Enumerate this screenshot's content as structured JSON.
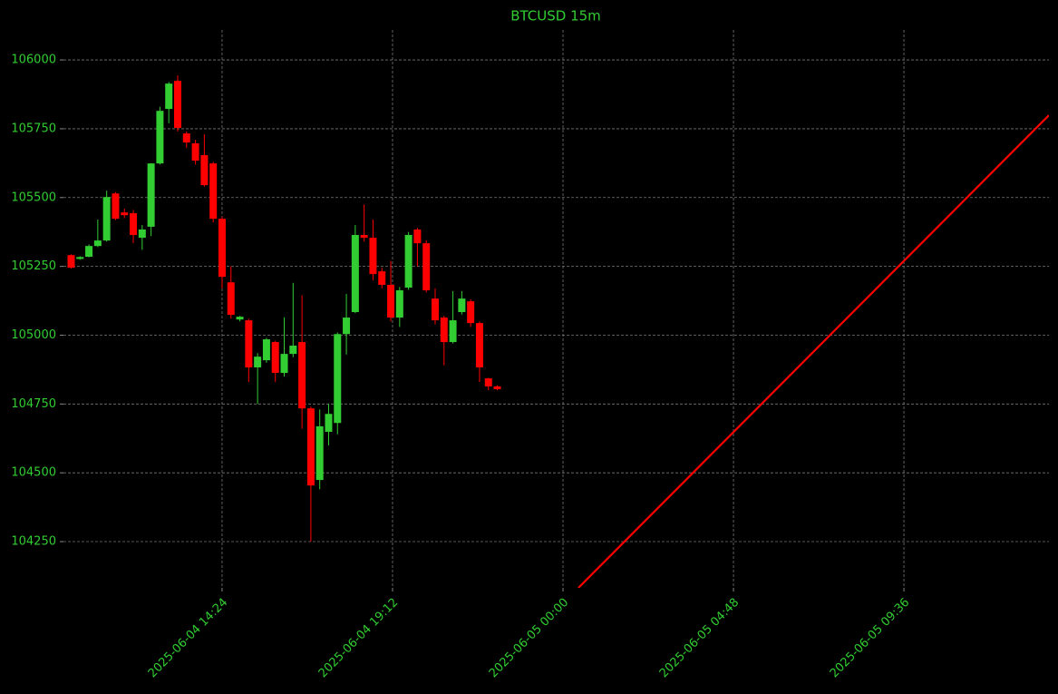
{
  "chart_data": {
    "type": "candlestick",
    "title": "BTCUSD 15m",
    "x": [
      "2025-06-04 10:09",
      "2025-06-04 10:24",
      "2025-06-04 10:39",
      "2025-06-04 10:54",
      "2025-06-04 11:09",
      "2025-06-04 11:24",
      "2025-06-04 11:39",
      "2025-06-04 11:54",
      "2025-06-04 12:09",
      "2025-06-04 12:24",
      "2025-06-04 12:39",
      "2025-06-04 12:54",
      "2025-06-04 13:09",
      "2025-06-04 13:24",
      "2025-06-04 13:39",
      "2025-06-04 13:54",
      "2025-06-04 14:09",
      "2025-06-04 14:24",
      "2025-06-04 14:39",
      "2025-06-04 14:54",
      "2025-06-04 15:09",
      "2025-06-04 15:24",
      "2025-06-04 15:39",
      "2025-06-04 15:54",
      "2025-06-04 16:09",
      "2025-06-04 16:24",
      "2025-06-04 16:39",
      "2025-06-04 16:54",
      "2025-06-04 17:09",
      "2025-06-04 17:24",
      "2025-06-04 17:39",
      "2025-06-04 17:54",
      "2025-06-04 18:09",
      "2025-06-04 18:24",
      "2025-06-04 18:39",
      "2025-06-04 18:54",
      "2025-06-04 19:09",
      "2025-06-04 19:24",
      "2025-06-04 19:39",
      "2025-06-04 19:54",
      "2025-06-04 20:09",
      "2025-06-04 20:24",
      "2025-06-04 20:39",
      "2025-06-04 20:54",
      "2025-06-04 21:09",
      "2025-06-04 21:24",
      "2025-06-04 21:39",
      "2025-06-04 21:54",
      "2025-06-04 22:09"
    ],
    "open": [
      105291,
      105277,
      105285,
      105324,
      105344,
      105515,
      105446,
      105443,
      105354,
      105394,
      105624,
      105822,
      105924,
      105733,
      105697,
      105654,
      105624,
      105423,
      105192,
      105057,
      105054,
      104883,
      104909,
      104975,
      104863,
      104932,
      104975,
      104734,
      104474,
      104649,
      104681,
      105004,
      105084,
      105364,
      105354,
      105232,
      105183,
      105064,
      105173,
      105384,
      105334,
      105133,
      105064,
      104975,
      105084,
      105123,
      105044,
      104843,
      104814
    ],
    "high": [
      105294,
      105287,
      105330,
      105420,
      105525,
      105520,
      105460,
      105455,
      105400,
      105625,
      105830,
      105920,
      105944,
      105740,
      105710,
      105730,
      105630,
      105430,
      105250,
      105070,
      105060,
      104935,
      104990,
      104980,
      105065,
      105190,
      105145,
      104740,
      104730,
      104750,
      105010,
      105150,
      105400,
      105475,
      105420,
      105245,
      105270,
      105175,
      105375,
      105390,
      105345,
      105170,
      105070,
      105160,
      105160,
      105130,
      105050,
      104845,
      104818
    ],
    "low": [
      105242,
      105274,
      105283,
      105320,
      105340,
      105418,
      105425,
      105335,
      105310,
      105360,
      105620,
      105770,
      105740,
      105680,
      105620,
      105540,
      105410,
      105170,
      105060,
      105050,
      104830,
      104750,
      104900,
      104830,
      104850,
      104920,
      104660,
      104250,
      104440,
      104600,
      104640,
      104930,
      105080,
      105340,
      105200,
      105170,
      105050,
      105030,
      105165,
      105250,
      105155,
      105040,
      104890,
      104970,
      105075,
      105030,
      104830,
      104800,
      104800
    ],
    "close": [
      105245,
      105284,
      105324,
      105344,
      105502,
      105423,
      105436,
      105364,
      105384,
      105624,
      105815,
      105914,
      105753,
      105700,
      105634,
      105545,
      105423,
      105212,
      105074,
      105067,
      104883,
      104922,
      104985,
      104863,
      104932,
      104962,
      104734,
      104454,
      104669,
      104714,
      105004,
      105064,
      105364,
      105354,
      105222,
      105183,
      105064,
      105163,
      105364,
      105334,
      105163,
      105054,
      104975,
      105054,
      105133,
      105044,
      104883,
      104814,
      104804
    ],
    "up_color": "#32cd32",
    "down_color": "#ff0000",
    "overlay": {
      "type": "line",
      "color": "#ff0000",
      "x": [
        "2025-06-05 00:26",
        "2025-06-05 13:41"
      ],
      "values": [
        104082,
        105799
      ]
    },
    "xlim": [
      "2025-06-04 09:56",
      "2025-06-05 13:41"
    ],
    "xticks": [
      "2025-06-04 14:24",
      "2025-06-04 19:12",
      "2025-06-05 00:00",
      "2025-06-05 04:48",
      "2025-06-05 09:36"
    ],
    "ylim": [
      104082,
      106109
    ],
    "yticks": [
      104250,
      104500,
      104750,
      105000,
      105250,
      105500,
      105750,
      106000
    ],
    "grid": true
  }
}
